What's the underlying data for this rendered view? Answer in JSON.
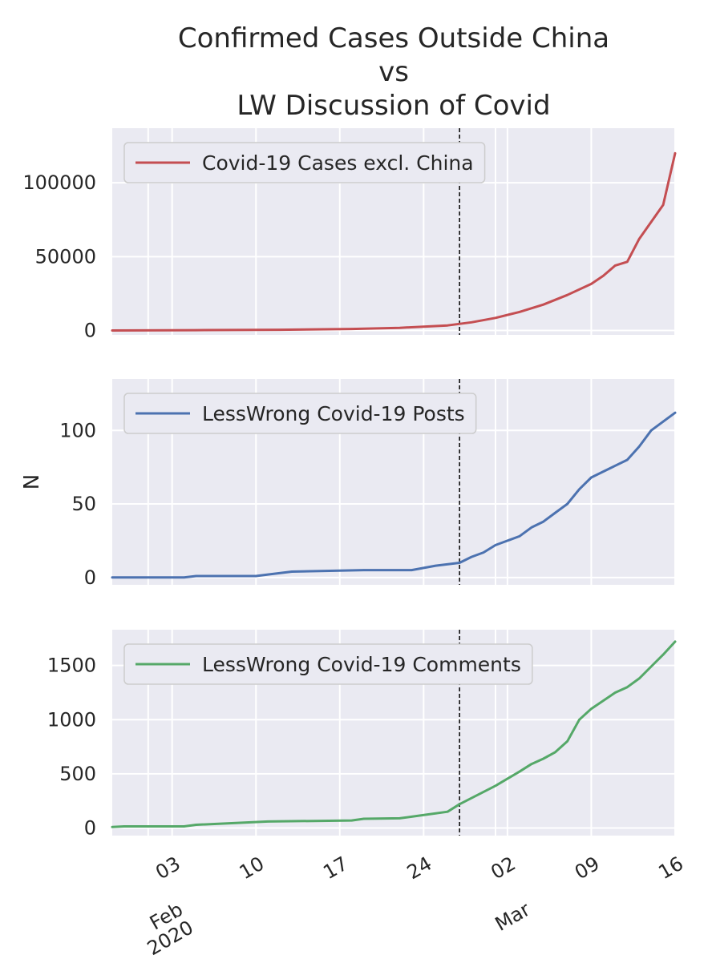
{
  "figure": {
    "title_lines": [
      "Confirmed Cases Outside China",
      "vs",
      "LW Discussion of Covid"
    ]
  },
  "chart_data": [
    {
      "type": "line",
      "series": [
        {
          "name": "Covid-19 Cases excl. China",
          "color": "#c44e52",
          "x": [
            "2020-01-29",
            "2020-02-05",
            "2020-02-12",
            "2020-02-18",
            "2020-02-22",
            "2020-02-26",
            "2020-02-28",
            "2020-03-01",
            "2020-03-03",
            "2020-03-05",
            "2020-03-07",
            "2020-03-09",
            "2020-03-10",
            "2020-03-11",
            "2020-03-12",
            "2020-03-13",
            "2020-03-15",
            "2020-03-16"
          ],
          "values": [
            0,
            200,
            500,
            1000,
            1800,
            3400,
            5500,
            8500,
            12500,
            17500,
            24000,
            31500,
            37000,
            44000,
            46500,
            62000,
            85000,
            120000
          ]
        }
      ],
      "yticks": [
        "0",
        "50000",
        "100000"
      ],
      "ylim": [
        -3000,
        137000
      ],
      "ylabel": "",
      "legend": "upper-left",
      "grid": true
    },
    {
      "type": "line",
      "series": [
        {
          "name": "LessWrong Covid-19 Posts",
          "color": "#4c72b0",
          "x": [
            "2020-01-29",
            "2020-02-04",
            "2020-02-05",
            "2020-02-10",
            "2020-02-11",
            "2020-02-13",
            "2020-02-19",
            "2020-02-23",
            "2020-02-25",
            "2020-02-27",
            "2020-02-28",
            "2020-02-29",
            "2020-03-01",
            "2020-03-02",
            "2020-03-03",
            "2020-03-04",
            "2020-03-05",
            "2020-03-06",
            "2020-03-07",
            "2020-03-08",
            "2020-03-09",
            "2020-03-10",
            "2020-03-11",
            "2020-03-12",
            "2020-03-13",
            "2020-03-14",
            "2020-03-15",
            "2020-03-16"
          ],
          "values": [
            0,
            0,
            1,
            1,
            2,
            4,
            5,
            5,
            8,
            10,
            14,
            17,
            22,
            25,
            28,
            34,
            38,
            44,
            50,
            60,
            68,
            72,
            76,
            80,
            89,
            100,
            106,
            112
          ]
        }
      ],
      "yticks": [
        "0",
        "50",
        "100"
      ],
      "ylim": [
        -5,
        135
      ],
      "ylabel": "N",
      "legend": "upper-left",
      "grid": true
    },
    {
      "type": "line",
      "series": [
        {
          "name": "LessWrong Covid-19 Comments",
          "color": "#55a868",
          "x": [
            "2020-01-29",
            "2020-01-30",
            "2020-02-04",
            "2020-02-05",
            "2020-02-11",
            "2020-02-18",
            "2020-02-19",
            "2020-02-22",
            "2020-02-26",
            "2020-02-27",
            "2020-03-01",
            "2020-03-03",
            "2020-03-04",
            "2020-03-05",
            "2020-03-06",
            "2020-03-07",
            "2020-03-08",
            "2020-03-09",
            "2020-03-11",
            "2020-03-12",
            "2020-03-13",
            "2020-03-14",
            "2020-03-15",
            "2020-03-16"
          ],
          "values": [
            10,
            15,
            15,
            30,
            60,
            70,
            85,
            90,
            150,
            220,
            390,
            520,
            590,
            640,
            700,
            800,
            1000,
            1100,
            1250,
            1300,
            1380,
            1490,
            1600,
            1720
          ]
        }
      ],
      "yticks": [
        "0",
        "500",
        "1000",
        "1500"
      ],
      "ylim": [
        -70,
        1830
      ],
      "ylabel": "",
      "legend": "upper-left",
      "grid": true
    }
  ],
  "xaxis": {
    "range": [
      "2020-01-29",
      "2020-03-16"
    ],
    "tick_dates": [
      "2020-02-03",
      "2020-02-10",
      "2020-02-17",
      "2020-02-24",
      "2020-03-02",
      "2020-03-09",
      "2020-03-16"
    ],
    "tick_labels": [
      "03",
      "10",
      "17",
      "24",
      "02",
      "09",
      "16"
    ],
    "month_dates": [
      "2020-02-01",
      "2020-03-01"
    ],
    "month_labels": [
      [
        "Feb",
        "2020"
      ],
      [
        "Mar"
      ]
    ],
    "marker_date": "2020-02-27"
  }
}
